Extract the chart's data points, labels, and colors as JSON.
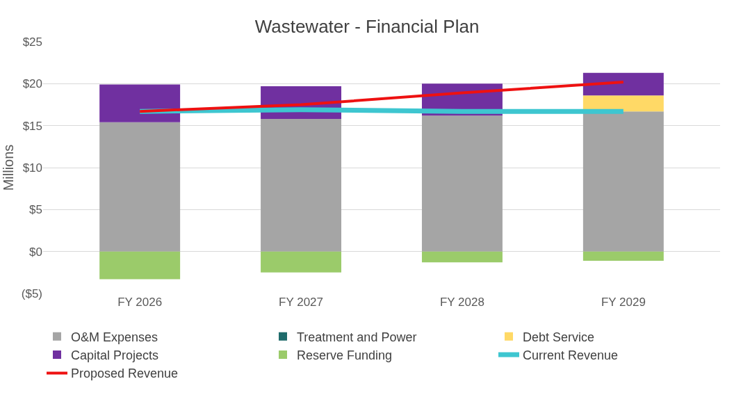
{
  "chart_data": {
    "type": "bar",
    "title": "Wastewater - Financial Plan",
    "ylabel": "Millions",
    "stacked": true,
    "categories": [
      "FY 2026",
      "FY 2027",
      "FY 2028",
      "FY 2029"
    ],
    "series": [
      {
        "name": "O&M Expenses",
        "color": "#a5a5a5",
        "values": [
          15.4,
          15.8,
          16.2,
          16.7
        ]
      },
      {
        "name": "Treatment and Power",
        "color": "#1f6b6b",
        "values": [
          0,
          0,
          0,
          0
        ]
      },
      {
        "name": "Debt Service",
        "color": "#ffd966",
        "values": [
          0,
          0,
          0,
          1.9
        ]
      },
      {
        "name": "Capital Projects",
        "color": "#7030a0",
        "values": [
          4.5,
          3.9,
          3.8,
          2.7
        ]
      },
      {
        "name": "Reserve Funding",
        "color": "#9bcb6a",
        "values": [
          -3.3,
          -2.5,
          -1.3,
          -1.1
        ]
      },
      {
        "name": "Current Revenue",
        "type": "line",
        "color": "#3ec6d0",
        "values": [
          16.7,
          16.9,
          16.7,
          16.7
        ]
      },
      {
        "name": "Proposed Revenue",
        "type": "line",
        "color": "#ee1111",
        "values": [
          16.7,
          17.5,
          18.9,
          20.2
        ]
      }
    ],
    "ylim": [
      -5,
      25
    ],
    "yticks": [
      {
        "value": -5,
        "label": "($5)"
      },
      {
        "value": 0,
        "label": "$0"
      },
      {
        "value": 5,
        "label": "$5"
      },
      {
        "value": 10,
        "label": "$10"
      },
      {
        "value": 15,
        "label": "$15"
      },
      {
        "value": 20,
        "label": "$20"
      },
      {
        "value": 25,
        "label": "$25"
      }
    ],
    "grid": "y",
    "legend": "bottom",
    "line_style": "solid",
    "marker": "none"
  }
}
